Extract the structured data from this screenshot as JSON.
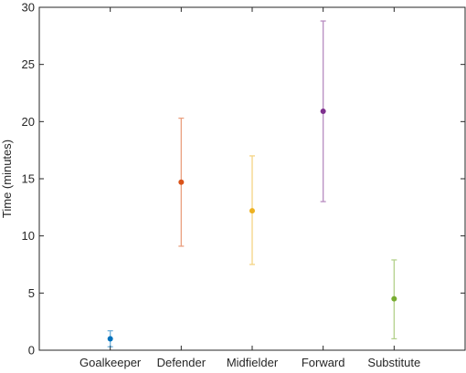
{
  "chart_data": {
    "type": "scatter",
    "title": "",
    "xlabel": "",
    "ylabel": "Time (minutes)",
    "ylim": [
      0,
      30
    ],
    "yticks": [
      0,
      5,
      10,
      15,
      20,
      25,
      30
    ],
    "grid": false,
    "categories": [
      "Goalkeeper",
      "Defender",
      "Midfielder",
      "Forward",
      "Substitute"
    ],
    "values": [
      1.0,
      14.7,
      12.2,
      20.9,
      4.5
    ],
    "error_low": [
      0.3,
      9.1,
      7.5,
      13.0,
      1.0
    ],
    "error_high": [
      1.7,
      20.3,
      17.0,
      28.8,
      7.9
    ],
    "colors": [
      "#0072BD",
      "#D95319",
      "#EDB120",
      "#7E2F8E",
      "#77AC30"
    ]
  }
}
